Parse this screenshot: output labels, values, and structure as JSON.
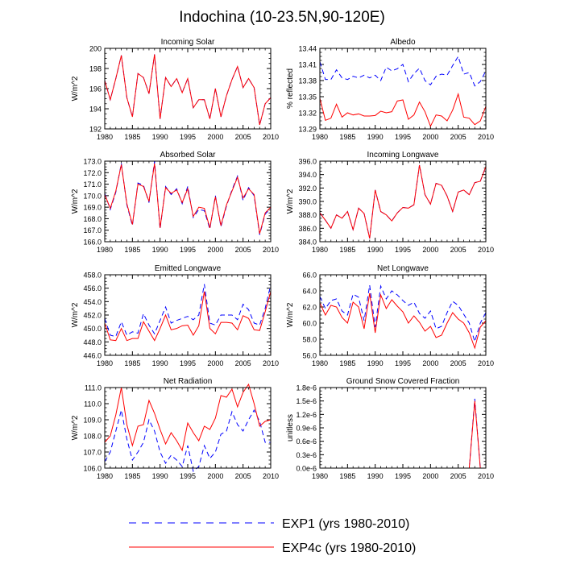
{
  "title": "Indochina (10-23.5N,90-120E)",
  "legend": [
    {
      "label": "EXP1 (yrs 1980-2010)",
      "color": "#0000ff",
      "dash": "dashed"
    },
    {
      "label": "EXP4c (yrs 1980-2010)",
      "color": "#ff0000",
      "dash": "solid"
    }
  ],
  "chart_data": [
    {
      "type": "line",
      "title": "Incoming Solar",
      "xlabel": "",
      "ylabel": "W/m^2",
      "xlim": [
        1980,
        2010
      ],
      "ylim": [
        192,
        200
      ],
      "xticks": [
        1980,
        1985,
        1990,
        1995,
        2000,
        2005,
        2010
      ],
      "yticks": [
        192,
        194,
        196,
        198,
        200
      ],
      "ytick_labels": [
        "192",
        "194",
        "196",
        "198",
        "200"
      ],
      "x": [
        1980,
        1981,
        1982,
        1983,
        1984,
        1985,
        1986,
        1987,
        1988,
        1989,
        1990,
        1991,
        1992,
        1993,
        1994,
        1995,
        1996,
        1997,
        1998,
        1999,
        2000,
        2001,
        2002,
        2003,
        2004,
        2005,
        2006,
        2007,
        2008,
        2009,
        2010
      ],
      "series": [
        {
          "name": "EXP1",
          "values": [
            196.8,
            194.9,
            197.0,
            199.3,
            195.1,
            193.2,
            197.5,
            197.1,
            195.5,
            199.4,
            193.0,
            197.1,
            196.2,
            197.0,
            195.6,
            197.0,
            194.1,
            194.9,
            194.9,
            193.0,
            196.0,
            193.2,
            195.3,
            196.9,
            198.2,
            196.1,
            197.0,
            196.1,
            192.4,
            194.5,
            195.1
          ]
        },
        {
          "name": "EXP4c",
          "values": [
            196.8,
            194.9,
            197.0,
            199.3,
            195.1,
            193.2,
            197.5,
            197.1,
            195.5,
            199.4,
            193.0,
            197.1,
            196.2,
            197.0,
            195.6,
            197.0,
            194.1,
            194.9,
            194.9,
            193.0,
            196.0,
            193.2,
            195.3,
            196.9,
            198.2,
            196.1,
            197.0,
            196.1,
            192.4,
            194.5,
            195.1
          ]
        }
      ]
    },
    {
      "type": "line",
      "title": "Albedo",
      "xlabel": "",
      "ylabel": "% reflected",
      "xlim": [
        1980,
        2010
      ],
      "ylim": [
        13.29,
        13.44
      ],
      "xticks": [
        1980,
        1985,
        1990,
        1995,
        2000,
        2005,
        2010
      ],
      "yticks": [
        13.29,
        13.32,
        13.35,
        13.38,
        13.41,
        13.44
      ],
      "ytick_labels": [
        "13.29",
        "13.32",
        "13.35",
        "13.38",
        "13.41",
        "13.44"
      ],
      "x": [
        1980,
        1981,
        1982,
        1983,
        1984,
        1985,
        1986,
        1987,
        1988,
        1989,
        1990,
        1991,
        1992,
        1993,
        1994,
        1995,
        1996,
        1997,
        1998,
        1999,
        2000,
        2001,
        2002,
        2003,
        2004,
        2005,
        2006,
        2007,
        2008,
        2009,
        2010
      ],
      "series": [
        {
          "name": "EXP1",
          "values": [
            13.415,
            13.382,
            13.382,
            13.4,
            13.385,
            13.382,
            13.388,
            13.385,
            13.39,
            13.385,
            13.39,
            13.38,
            13.405,
            13.398,
            13.402,
            13.41,
            13.378,
            13.393,
            13.403,
            13.38,
            13.372,
            13.388,
            13.392,
            13.39,
            13.408,
            13.425,
            13.392,
            13.395,
            13.37,
            13.378,
            13.398
          ]
        },
        {
          "name": "EXP4c",
          "values": [
            13.347,
            13.306,
            13.31,
            13.336,
            13.312,
            13.32,
            13.316,
            13.318,
            13.314,
            13.314,
            13.315,
            13.323,
            13.32,
            13.322,
            13.342,
            13.344,
            13.308,
            13.316,
            13.34,
            13.322,
            13.295,
            13.316,
            13.314,
            13.305,
            13.325,
            13.355,
            13.312,
            13.31,
            13.298,
            13.305,
            13.332
          ]
        }
      ]
    },
    {
      "type": "line",
      "title": "Absorbed Solar",
      "xlabel": "",
      "ylabel": "W/m^2",
      "xlim": [
        1980,
        2010
      ],
      "ylim": [
        166,
        173
      ],
      "xticks": [
        1980,
        1985,
        1990,
        1995,
        2000,
        2005,
        2010
      ],
      "yticks": [
        166,
        167,
        168,
        169,
        170,
        171,
        172,
        173
      ],
      "ytick_labels": [
        "166.0",
        "167.0",
        "168.0",
        "169.0",
        "170.0",
        "171.0",
        "172.0",
        "173.0"
      ],
      "x": [
        1980,
        1981,
        1982,
        1983,
        1984,
        1985,
        1986,
        1987,
        1988,
        1989,
        1990,
        1991,
        1992,
        1993,
        1994,
        1995,
        1996,
        1997,
        1998,
        1999,
        2000,
        2001,
        2002,
        2003,
        2004,
        2005,
        2006,
        2007,
        2008,
        2009,
        2010
      ],
      "series": [
        {
          "name": "EXP1",
          "values": [
            170.2,
            168.8,
            170.3,
            172.8,
            169.2,
            167.4,
            171.1,
            170.9,
            169.4,
            173.0,
            167.1,
            170.8,
            170.1,
            170.6,
            169.3,
            170.8,
            168.1,
            168.8,
            168.7,
            167.1,
            170.0,
            167.3,
            169.1,
            170.5,
            171.7,
            169.6,
            170.7,
            170.0,
            166.6,
            168.4,
            168.9
          ]
        },
        {
          "name": "EXP4c",
          "values": [
            170.1,
            168.9,
            170.4,
            172.7,
            169.3,
            167.5,
            171.0,
            170.8,
            169.5,
            172.8,
            167.2,
            170.7,
            170.2,
            170.5,
            169.4,
            170.6,
            168.2,
            169.0,
            168.9,
            167.2,
            169.9,
            167.4,
            169.2,
            170.4,
            171.6,
            169.8,
            170.6,
            170.1,
            166.7,
            168.5,
            169.0
          ]
        }
      ]
    },
    {
      "type": "line",
      "title": "Incoming Longwave",
      "xlabel": "",
      "ylabel": "W/m^2",
      "xlim": [
        1980,
        2010
      ],
      "ylim": [
        384,
        396
      ],
      "xticks": [
        1980,
        1985,
        1990,
        1995,
        2000,
        2005,
        2010
      ],
      "yticks": [
        384,
        386,
        388,
        390,
        392,
        394,
        396
      ],
      "ytick_labels": [
        "384.0",
        "386.0",
        "388.0",
        "390.0",
        "392.0",
        "394.0",
        "396.0"
      ],
      "x": [
        1980,
        1981,
        1982,
        1983,
        1984,
        1985,
        1986,
        1987,
        1988,
        1989,
        1990,
        1991,
        1992,
        1993,
        1994,
        1995,
        1996,
        1997,
        1998,
        1999,
        2000,
        2001,
        2002,
        2003,
        2004,
        2005,
        2006,
        2007,
        2008,
        2009,
        2010
      ],
      "series": [
        {
          "name": "EXP1",
          "values": [
            388.3,
            387.2,
            386.0,
            388.0,
            387.5,
            388.5,
            385.8,
            389.0,
            388.2,
            384.5,
            391.7,
            388.5,
            388.0,
            387.1,
            388.3,
            389.1,
            389.0,
            389.5,
            395.4,
            391.0,
            389.6,
            392.7,
            392.4,
            390.8,
            388.5,
            391.4,
            391.7,
            391.0,
            392.8,
            393.0,
            395.2
          ]
        },
        {
          "name": "EXP4c",
          "values": [
            388.3,
            387.2,
            386.0,
            388.0,
            387.5,
            388.5,
            385.8,
            389.0,
            388.2,
            384.5,
            391.7,
            388.5,
            388.0,
            387.1,
            388.3,
            389.1,
            389.0,
            389.5,
            395.4,
            391.0,
            389.6,
            392.7,
            392.4,
            390.8,
            388.5,
            391.4,
            391.7,
            391.0,
            392.8,
            393.0,
            395.2
          ]
        }
      ]
    },
    {
      "type": "line",
      "title": "Emitted Longwave",
      "xlabel": "",
      "ylabel": "W/m^2",
      "xlim": [
        1980,
        2010
      ],
      "ylim": [
        446,
        458
      ],
      "xticks": [
        1980,
        1985,
        1990,
        1995,
        2000,
        2005,
        2010
      ],
      "yticks": [
        446,
        448,
        450,
        452,
        454,
        456,
        458
      ],
      "ytick_labels": [
        "446.0",
        "448.0",
        "450.0",
        "452.0",
        "454.0",
        "456.0",
        "458.0"
      ],
      "x": [
        1980,
        1981,
        1982,
        1983,
        1984,
        1985,
        1986,
        1987,
        1988,
        1989,
        1990,
        1991,
        1992,
        1993,
        1994,
        1995,
        1996,
        1997,
        1998,
        1999,
        2000,
        2001,
        2002,
        2003,
        2004,
        2005,
        2006,
        2007,
        2008,
        2009,
        2010
      ],
      "series": [
        {
          "name": "EXP1",
          "values": [
            451.5,
            449.0,
            448.8,
            451.0,
            449.0,
            449.5,
            449.3,
            452.2,
            450.5,
            449.2,
            451.2,
            453.2,
            450.8,
            451.2,
            451.5,
            451.8,
            451.3,
            452.0,
            456.6,
            450.8,
            450.5,
            452.0,
            452.0,
            452.0,
            451.3,
            453.6,
            452.8,
            450.8,
            450.5,
            453.0,
            456.5
          ]
        },
        {
          "name": "EXP4c",
          "values": [
            450.8,
            448.3,
            448.2,
            450.0,
            448.2,
            448.5,
            448.5,
            451.0,
            449.6,
            448.2,
            450.0,
            452.0,
            449.8,
            450.0,
            450.4,
            450.5,
            449.0,
            450.4,
            455.5,
            450.0,
            449.2,
            450.9,
            450.9,
            450.8,
            449.8,
            451.9,
            451.5,
            449.8,
            449.7,
            452.5,
            455.5
          ]
        }
      ]
    },
    {
      "type": "line",
      "title": "Net Longwave",
      "xlabel": "",
      "ylabel": "W/m^2",
      "xlim": [
        1980,
        2010
      ],
      "ylim": [
        56,
        66
      ],
      "xticks": [
        1980,
        1985,
        1990,
        1995,
        2000,
        2005,
        2010
      ],
      "yticks": [
        56,
        58,
        60,
        62,
        64,
        66
      ],
      "ytick_labels": [
        "56.0",
        "58.0",
        "60.0",
        "62.0",
        "64.0",
        "66.0"
      ],
      "x": [
        1980,
        1981,
        1982,
        1983,
        1984,
        1985,
        1986,
        1987,
        1988,
        1989,
        1990,
        1991,
        1992,
        1993,
        1994,
        1995,
        1996,
        1997,
        1998,
        1999,
        2000,
        2001,
        2002,
        2003,
        2004,
        2005,
        2006,
        2007,
        2008,
        2009,
        2010
      ],
      "series": [
        {
          "name": "EXP1",
          "values": [
            63.3,
            61.8,
            62.8,
            63.0,
            61.5,
            61.0,
            63.6,
            63.2,
            60.3,
            64.7,
            59.5,
            64.6,
            63.0,
            64.0,
            63.5,
            62.8,
            62.2,
            62.6,
            61.2,
            60.6,
            61.5,
            59.3,
            59.6,
            61.3,
            62.7,
            62.2,
            61.1,
            60.0,
            57.7,
            60.0,
            61.3
          ]
        },
        {
          "name": "EXP4c",
          "values": [
            62.5,
            61.0,
            62.2,
            62.0,
            60.7,
            60.0,
            62.6,
            62.0,
            59.3,
            63.7,
            58.8,
            63.5,
            61.8,
            62.9,
            62.1,
            61.4,
            60.0,
            60.9,
            60.1,
            59.0,
            59.6,
            58.2,
            58.5,
            60.0,
            61.3,
            60.5,
            60.0,
            58.8,
            56.9,
            59.5,
            60.3
          ]
        }
      ]
    },
    {
      "type": "line",
      "title": "Net Radiation",
      "xlabel": "",
      "ylabel": "W/m^2",
      "xlim": [
        1980,
        2010
      ],
      "ylim": [
        106,
        111
      ],
      "xticks": [
        1980,
        1985,
        1990,
        1995,
        2000,
        2005,
        2010
      ],
      "yticks": [
        106,
        107,
        108,
        109,
        110,
        111
      ],
      "ytick_labels": [
        "106.0",
        "107.0",
        "108.0",
        "109.0",
        "110.0",
        "111.0"
      ],
      "x": [
        1980,
        1981,
        1982,
        1983,
        1984,
        1985,
        1986,
        1987,
        1988,
        1989,
        1990,
        1991,
        1992,
        1993,
        1994,
        1995,
        1996,
        1997,
        1998,
        1999,
        2000,
        2001,
        2002,
        2003,
        2004,
        2005,
        2006,
        2007,
        2008,
        2009,
        2010
      ],
      "series": [
        {
          "name": "EXP1",
          "values": [
            106.4,
            107.0,
            108.3,
            109.6,
            107.8,
            106.5,
            107.0,
            107.6,
            109.0,
            108.3,
            107.0,
            106.3,
            106.8,
            106.5,
            106.1,
            107.4,
            105.8,
            106.1,
            107.4,
            106.6,
            107.0,
            108.1,
            108.3,
            109.5,
            108.7,
            108.3,
            109.0,
            109.6,
            108.9,
            107.6,
            107.6
          ]
        },
        {
          "name": "EXP4c",
          "values": [
            107.6,
            108.0,
            109.3,
            111.0,
            108.7,
            107.4,
            108.6,
            108.7,
            110.2,
            109.4,
            108.4,
            107.5,
            108.2,
            107.7,
            107.1,
            108.8,
            108.2,
            107.7,
            108.6,
            108.4,
            109.1,
            110.5,
            110.4,
            110.9,
            109.8,
            110.7,
            111.2,
            110.0,
            108.6,
            108.9,
            109.0
          ]
        }
      ]
    },
    {
      "type": "line",
      "title": "Ground Snow Covered Fraction",
      "xlabel": "",
      "ylabel": "unitless",
      "xlim": [
        1980,
        2010
      ],
      "ylim": [
        0,
        1.8e-06
      ],
      "xticks": [
        1980,
        1985,
        1990,
        1995,
        2000,
        2005,
        2010
      ],
      "yticks": [
        0,
        3e-07,
        6e-07,
        9e-07,
        1.2e-06,
        1.5e-06,
        1.8e-06
      ],
      "ytick_labels": [
        "0.0e-6",
        "0.3e-6",
        "0.6e-6",
        "0.9e-6",
        "1.2e-6",
        "1.5e-6",
        "1.8e-6"
      ],
      "x": [
        1980,
        1981,
        1982,
        1983,
        1984,
        1985,
        1986,
        1987,
        1988,
        1989,
        1990,
        1991,
        1992,
        1993,
        1994,
        1995,
        1996,
        1997,
        1998,
        1999,
        2000,
        2001,
        2002,
        2003,
        2004,
        2005,
        2006,
        2007,
        2008,
        2009,
        2010
      ],
      "series": [
        {
          "name": "EXP1",
          "values": [
            0,
            0,
            0,
            0,
            0,
            0,
            0,
            0,
            0,
            0,
            0,
            0,
            0,
            0,
            0,
            0,
            0,
            0,
            0,
            0,
            0,
            0,
            0,
            0,
            0,
            0,
            0,
            0,
            1.55e-06,
            0,
            0
          ]
        },
        {
          "name": "EXP4c",
          "values": [
            0,
            0,
            0,
            0,
            0,
            0,
            0,
            0,
            0,
            0,
            0,
            0,
            0,
            0,
            0,
            0,
            0,
            0,
            0,
            0,
            0,
            0,
            0,
            0,
            0,
            0,
            0,
            0,
            1.5e-06,
            0,
            0
          ]
        }
      ]
    }
  ]
}
